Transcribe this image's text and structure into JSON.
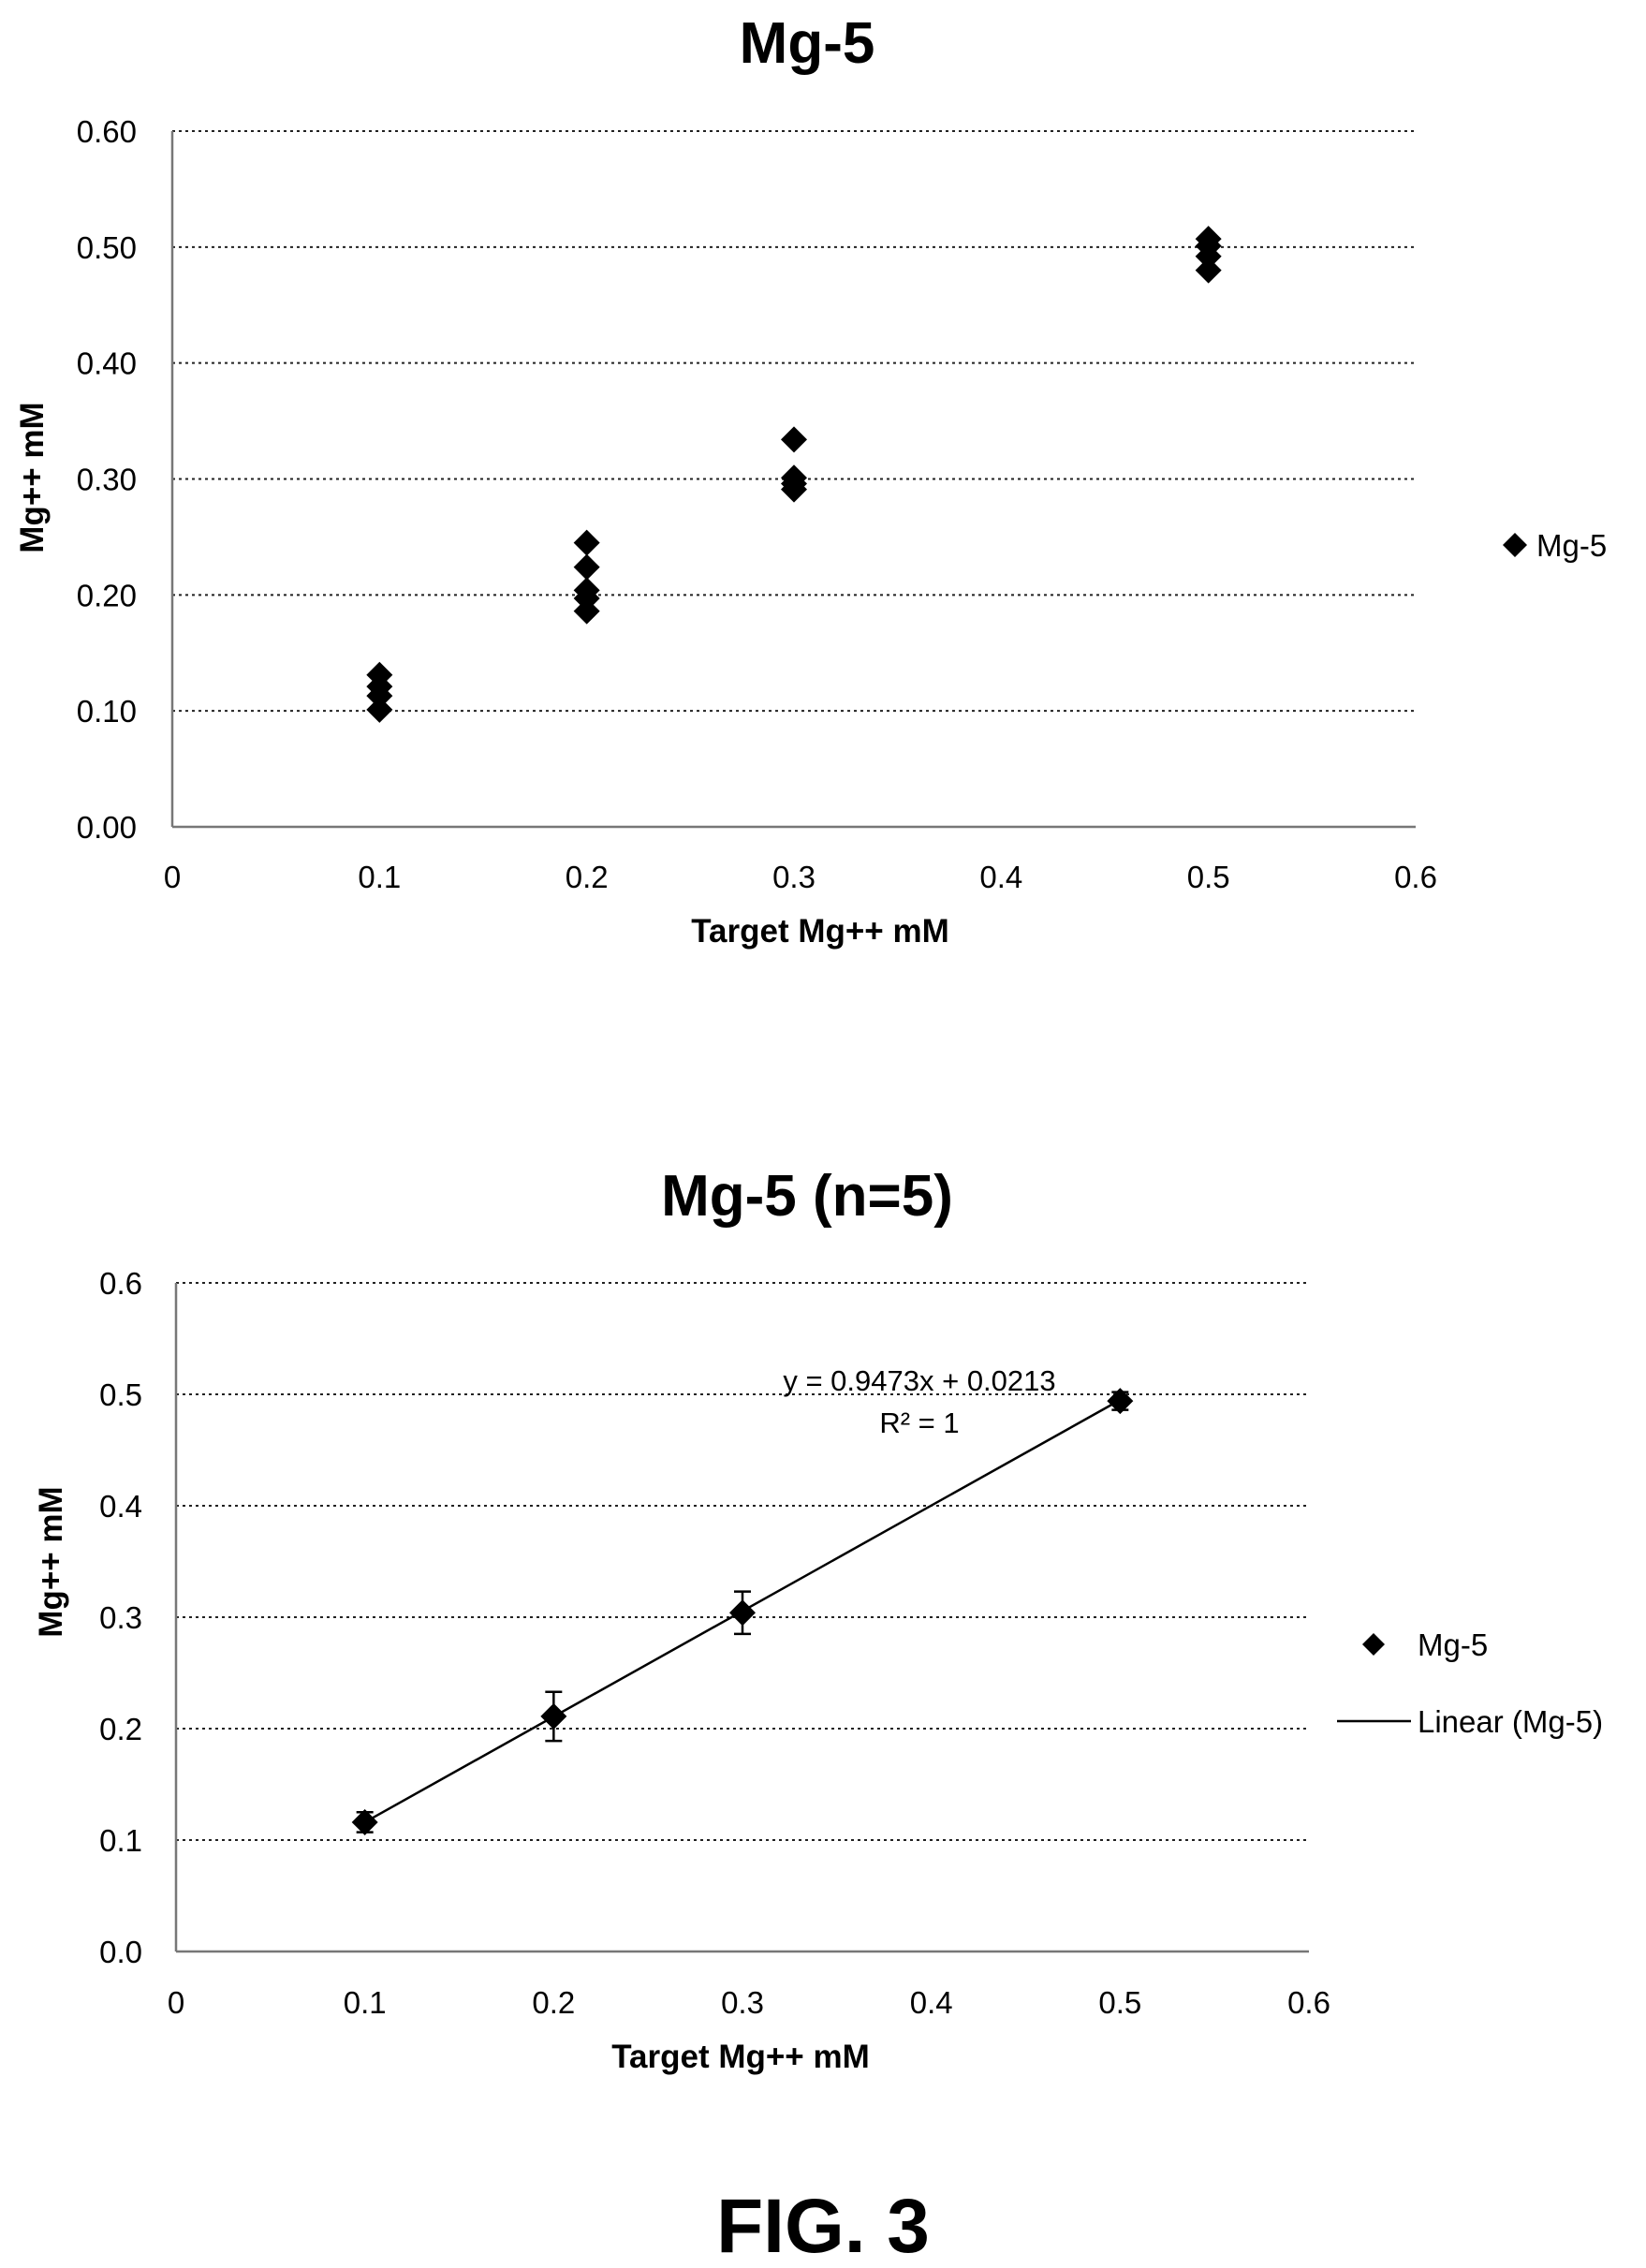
{
  "chart_data": [
    {
      "type": "scatter",
      "title": "Mg-5",
      "xlabel": "Target Mg++ mM",
      "ylabel": "Mg++ mM",
      "xlim": [
        0,
        0.6
      ],
      "ylim": [
        0,
        0.6
      ],
      "xticks": [
        "0",
        "0.1",
        "0.2",
        "0.3",
        "0.4",
        "0.5",
        "0.6"
      ],
      "yticks": [
        "0.00",
        "0.10",
        "0.20",
        "0.30",
        "0.40",
        "0.50",
        "0.60"
      ],
      "grid": "horizontal dotted",
      "legend_position": "right",
      "series": [
        {
          "name": "Mg-5",
          "marker": "diamond",
          "points": [
            [
              0.1,
              0.131
            ],
            [
              0.1,
              0.121
            ],
            [
              0.1,
              0.113
            ],
            [
              0.1,
              0.101
            ],
            [
              0.2,
              0.245
            ],
            [
              0.2,
              0.224
            ],
            [
              0.2,
              0.204
            ],
            [
              0.2,
              0.197
            ],
            [
              0.2,
              0.186
            ],
            [
              0.3,
              0.334
            ],
            [
              0.3,
              0.301
            ],
            [
              0.3,
              0.296
            ],
            [
              0.3,
              0.291
            ],
            [
              0.5,
              0.507
            ],
            [
              0.5,
              0.501
            ],
            [
              0.5,
              0.492
            ],
            [
              0.5,
              0.48
            ]
          ]
        }
      ]
    },
    {
      "type": "scatter",
      "title": "Mg-5 (n=5)",
      "xlabel": "Target Mg++ mM",
      "ylabel": "Mg++ mM",
      "xlim": [
        0,
        0.6
      ],
      "ylim": [
        0,
        0.6
      ],
      "xticks": [
        "0",
        "0.1",
        "0.2",
        "0.3",
        "0.4",
        "0.5",
        "0.6"
      ],
      "yticks": [
        "0.0",
        "0.1",
        "0.2",
        "0.3",
        "0.4",
        "0.5",
        "0.6"
      ],
      "grid": "horizontal dotted",
      "legend_position": "right",
      "series": [
        {
          "name": "Mg-5",
          "marker": "diamond",
          "points": [
            {
              "x": 0.1,
              "y": 0.116,
              "err": 0.009
            },
            {
              "x": 0.2,
              "y": 0.211,
              "err": 0.022
            },
            {
              "x": 0.3,
              "y": 0.304,
              "err": 0.019
            },
            {
              "x": 0.5,
              "y": 0.494,
              "err": 0.008
            }
          ]
        }
      ],
      "trendline": {
        "name": "Linear (Mg-5)",
        "slope": 0.9473,
        "intercept": 0.0213,
        "x_range": [
          0.1,
          0.5
        ],
        "equation_label": "y = 0.9473x + 0.0213",
        "r2_label": "R² = 1"
      }
    }
  ],
  "figure_caption": "FIG. 3"
}
